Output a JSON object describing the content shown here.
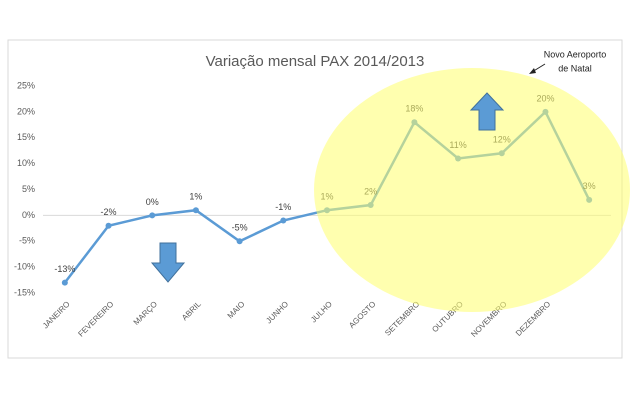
{
  "chart_data": {
    "type": "line",
    "title": "Variação mensal PAX 2014/2013",
    "annotation": [
      "Novo Aeroporto",
      "de Natal"
    ],
    "categories": [
      "JANEIRO",
      "FEVEREIRO",
      "MARÇO",
      "ABRIL",
      "MAIO",
      "JUNHO",
      "JULHO",
      "AGOSTO",
      "SETEMBRO",
      "OUTUBRO",
      "NOVEMBRO",
      "DEZEMBRO",
      null
    ],
    "series": [
      {
        "name": "PAX",
        "color": "#5b9bd5",
        "values": [
          -13,
          -2,
          0,
          1,
          -5,
          -1,
          1,
          2,
          18,
          11,
          12,
          20,
          3
        ],
        "value_labels": [
          "-13%",
          "-2%",
          "0%",
          "1%",
          "-5%",
          "-1%",
          "1%",
          "2%",
          "18%",
          "11%",
          "12%",
          "20%",
          "3%"
        ]
      }
    ],
    "ylim": [
      -15,
      25
    ],
    "yticks": [
      {
        "value": 25,
        "label": "25%"
      },
      {
        "value": 20,
        "label": "20%"
      },
      {
        "value": 15,
        "label": "15%"
      },
      {
        "value": 10,
        "label": "10%"
      },
      {
        "value": 5,
        "label": "5%"
      },
      {
        "value": 0,
        "label": "0%"
      },
      {
        "value": -5,
        "label": "-5%"
      },
      {
        "value": -10,
        "label": "-10%"
      },
      {
        "value": -15,
        "label": "-15%"
      }
    ]
  }
}
